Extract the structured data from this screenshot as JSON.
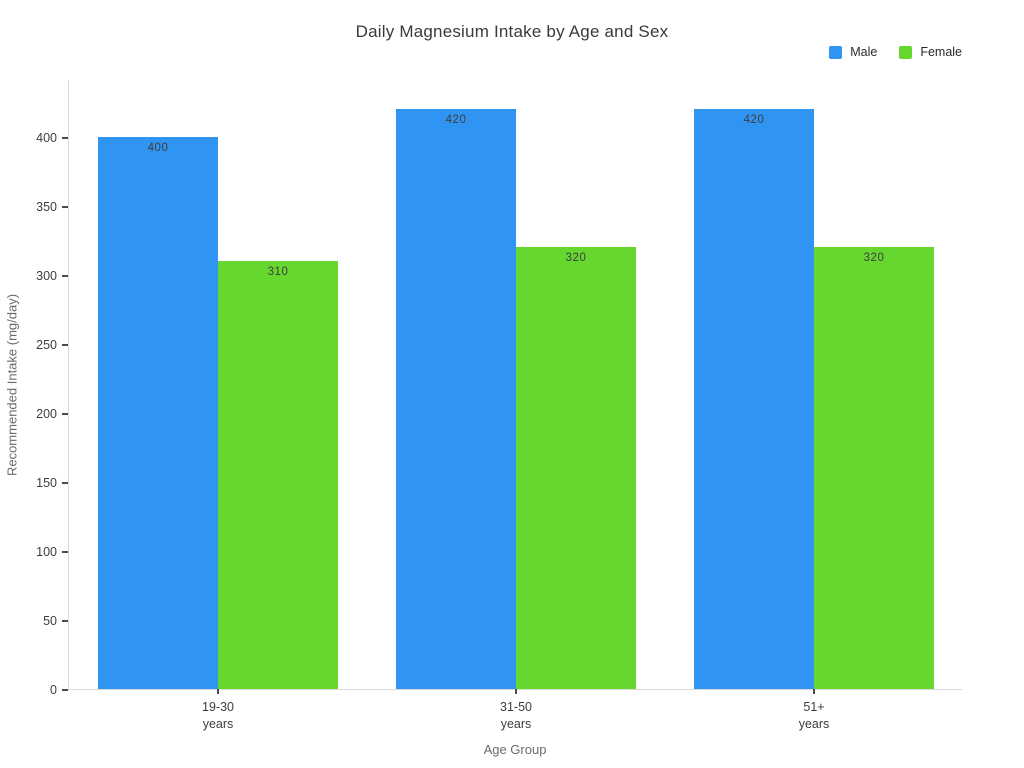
{
  "chart_data": {
    "type": "bar",
    "title": "Daily Magnesium Intake by Age and Sex",
    "xlabel": "Age Group",
    "ylabel": "Recommended Intake (mg/day)",
    "categories": [
      "19-30\nyears",
      "31-50\nyears",
      "51+\nyears"
    ],
    "series": [
      {
        "name": "Male",
        "color": "#3095F2",
        "values": [
          400,
          420,
          420
        ]
      },
      {
        "name": "Female",
        "color": "#66D72E",
        "values": [
          310,
          320,
          320
        ]
      }
    ],
    "bar_value_labels": [
      [
        "400",
        "420",
        "420"
      ],
      [
        "310",
        "320",
        "320"
      ]
    ],
    "ylim": [
      0,
      442
    ],
    "yticks": [
      0,
      50,
      100,
      150,
      200,
      250,
      300,
      350,
      400
    ],
    "grid": false,
    "legend_position": "top-right",
    "colors": {
      "axis_line": "#d9d9d9",
      "tick_mark": "#4a4a4a",
      "title_text": "#3a3a3a",
      "tick_text": "#3d3d3d",
      "axis_title_text": "#6b6b6b",
      "bar_label_text": "#3d3d3d",
      "background": "#ffffff"
    }
  }
}
